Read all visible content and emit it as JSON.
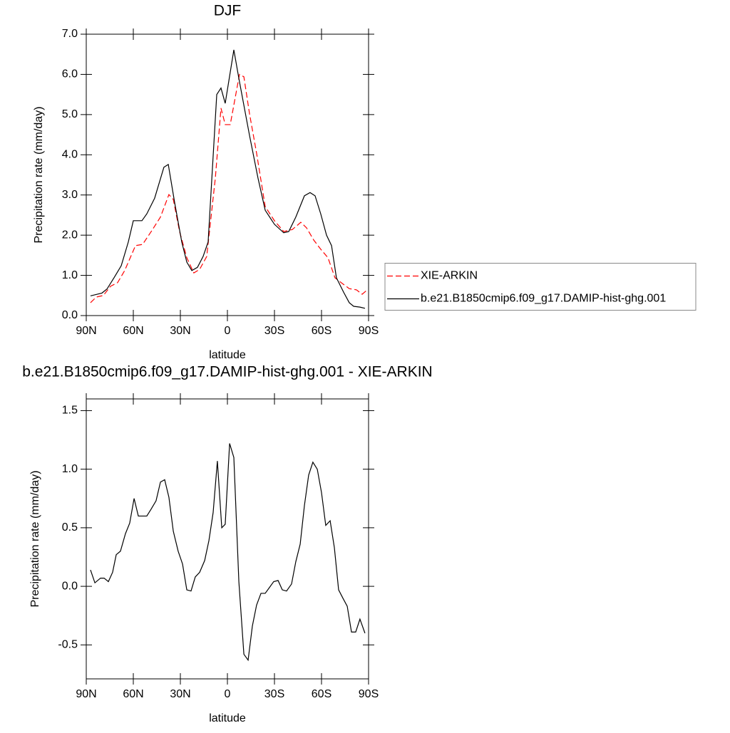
{
  "chart_data": [
    {
      "type": "line",
      "title": "DJF",
      "xlabel": "latitude",
      "ylabel": "Precipitation rate (mm/day)",
      "xlim": [
        90,
        -90
      ],
      "ylim": [
        0,
        7
      ],
      "xticks": [
        {
          "value": 90,
          "label": "90N"
        },
        {
          "value": 60,
          "label": "60N"
        },
        {
          "value": 30,
          "label": "30N"
        },
        0,
        {
          "value": -30,
          "label": "30S"
        },
        {
          "value": -60,
          "label": "60S"
        },
        {
          "value": -90,
          "label": "90S"
        }
      ],
      "yticks": [
        {
          "value": 0,
          "label": "0.0"
        },
        {
          "value": 1,
          "label": "1.0"
        },
        {
          "value": 2,
          "label": "2.0"
        },
        {
          "value": 3,
          "label": "3.0"
        },
        {
          "value": 4,
          "label": "4.0"
        },
        {
          "value": 5,
          "label": "5.0"
        },
        {
          "value": 6,
          "label": "6.0"
        },
        {
          "value": 7,
          "label": "7.0"
        }
      ],
      "legend": "right",
      "series": [
        {
          "name": "XIE-ARKIN",
          "color": "#ff0000",
          "linestyle": "dashed",
          "x": [
            87.3,
            83.6,
            79.1,
            74.5,
            70.0,
            65.5,
            58.6,
            54.1,
            48.6,
            42.7,
            37.3,
            34.5,
            30.5,
            25.9,
            21.4,
            17.7,
            13.2,
            7.7,
            4.1,
            1.4,
            -1.8,
            -7.7,
            -10.5,
            -14.1,
            -18.6,
            -24.1,
            -30.0,
            -35.9,
            -41.4,
            -46.8,
            -50.5,
            -55.0,
            -59.5,
            -64.1,
            -68.6,
            -73.2,
            -77.7,
            -82.3,
            -85.9,
            -88.6
          ],
          "values": [
            0.32,
            0.46,
            0.5,
            0.73,
            0.82,
            1.12,
            1.74,
            1.77,
            2.09,
            2.45,
            3.01,
            2.89,
            2.09,
            1.44,
            1.06,
            1.15,
            1.47,
            3.42,
            5.16,
            4.75,
            4.75,
            6.0,
            5.94,
            5.02,
            4.04,
            2.71,
            2.36,
            2.09,
            2.14,
            2.32,
            2.18,
            1.88,
            1.65,
            1.44,
            0.94,
            0.8,
            0.67,
            0.64,
            0.53,
            0.62
          ]
        },
        {
          "name": "b.e21.B1850cmip6.f09_g17.DAMIP-hist-ghg.001",
          "color": "#000000",
          "linestyle": "solid",
          "x": [
            87.3,
            80.0,
            76.8,
            72.3,
            67.7,
            63.2,
            60.0,
            54.5,
            51.4,
            46.4,
            40.5,
            37.7,
            33.6,
            29.1,
            25.9,
            22.7,
            19.1,
            15.5,
            12.3,
            6.8,
            4.1,
            1.4,
            -4.1,
            -7.3,
            -14.1,
            -19.5,
            -24.1,
            -30.0,
            -35.9,
            -39.1,
            -43.6,
            -49.1,
            -52.7,
            -55.9,
            -59.5,
            -63.2,
            -66.4,
            -69.5,
            -74.1,
            -77.7,
            -80.5,
            -84.5,
            -87.7
          ],
          "values": [
            0.49,
            0.56,
            0.66,
            0.94,
            1.24,
            1.83,
            2.36,
            2.36,
            2.53,
            2.92,
            3.69,
            3.76,
            2.8,
            1.83,
            1.33,
            1.12,
            1.2,
            1.47,
            1.83,
            5.5,
            5.66,
            5.28,
            6.61,
            5.9,
            4.48,
            3.42,
            2.62,
            2.27,
            2.06,
            2.09,
            2.45,
            2.98,
            3.06,
            2.98,
            2.53,
            2.0,
            1.74,
            0.94,
            0.58,
            0.32,
            0.23,
            0.21,
            0.18
          ]
        }
      ]
    },
    {
      "type": "line",
      "title": "b.e21.B1850cmip6.f09_g17.DAMIP-hist-ghg.001 - XIE-ARKIN",
      "xlabel": "latitude",
      "ylabel": "Precipitation rate (mm/day)",
      "xlim": [
        90,
        -90
      ],
      "ylim": [
        -0.79,
        1.6
      ],
      "xticks": [
        {
          "value": 90,
          "label": "90N"
        },
        {
          "value": 60,
          "label": "60N"
        },
        {
          "value": 30,
          "label": "30N"
        },
        0,
        {
          "value": -30,
          "label": "30S"
        },
        {
          "value": -60,
          "label": "60S"
        },
        {
          "value": -90,
          "label": "90S"
        }
      ],
      "yticks": [
        -0.5,
        {
          "value": 0,
          "label": "0.0"
        },
        0.5,
        {
          "value": 1,
          "label": "1.0"
        },
        1.5
      ],
      "series": [
        {
          "color": "#000000",
          "linestyle": "solid",
          "x": [
            87.3,
            84.5,
            80.9,
            78.6,
            75.9,
            73.2,
            70.9,
            68.2,
            65.0,
            62.3,
            59.5,
            56.8,
            51.4,
            48.6,
            45.5,
            42.7,
            40.0,
            37.3,
            34.5,
            31.4,
            28.6,
            25.9,
            23.2,
            20.5,
            17.7,
            14.5,
            11.8,
            9.1,
            6.4,
            3.6,
            1.4,
            -1.4,
            -4.1,
            -7.3,
            -10.5,
            -13.2,
            -15.9,
            -18.6,
            -21.4,
            -24.1,
            -26.8,
            -29.5,
            -32.3,
            -35.0,
            -37.7,
            -40.9,
            -43.6,
            -46.4,
            -49.1,
            -51.8,
            -54.5,
            -57.3,
            -60.0,
            -62.7,
            -65.5,
            -68.2,
            -70.9,
            -73.6,
            -76.4,
            -79.1,
            -81.8,
            -84.5,
            -87.7
          ],
          "values": [
            0.14,
            0.03,
            0.07,
            0.07,
            0.04,
            0.12,
            0.27,
            0.3,
            0.45,
            0.54,
            0.75,
            0.6,
            0.6,
            0.66,
            0.73,
            0.89,
            0.91,
            0.76,
            0.47,
            0.3,
            0.19,
            -0.03,
            -0.04,
            0.08,
            0.12,
            0.22,
            0.39,
            0.63,
            1.07,
            0.5,
            0.53,
            1.22,
            1.1,
            0.04,
            -0.58,
            -0.63,
            -0.34,
            -0.16,
            -0.06,
            -0.06,
            -0.01,
            0.04,
            0.05,
            -0.03,
            -0.04,
            0.02,
            0.21,
            0.36,
            0.69,
            0.95,
            1.06,
            1.0,
            0.8,
            0.52,
            0.56,
            0.33,
            -0.03,
            -0.1,
            -0.17,
            -0.39,
            -0.39,
            -0.28,
            -0.4
          ]
        }
      ]
    }
  ]
}
